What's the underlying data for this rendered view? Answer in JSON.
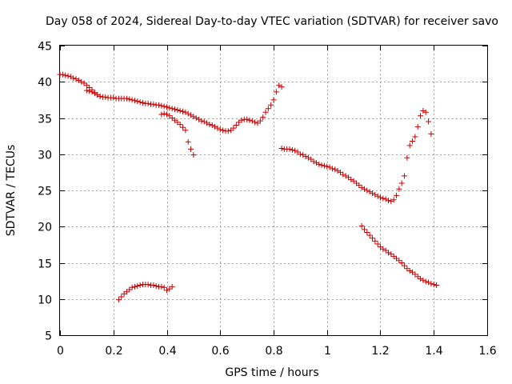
{
  "chart_data": {
    "type": "scatter",
    "title": "Day 058 of 2024, Sidereal Day-to-day VTEC variation (SDTVAR) for receiver savo",
    "xlabel": "GPS time / hours",
    "ylabel": "SDTVAR / TECUs",
    "xlim": [
      0,
      1.6
    ],
    "ylim": [
      5,
      45
    ],
    "xticks": [
      "0",
      "0.2",
      "0.4",
      "0.6",
      "0.8",
      "1",
      "1.2",
      "1.4",
      "1.6"
    ],
    "yticks": [
      "5",
      "10",
      "15",
      "20",
      "25",
      "30",
      "35",
      "40",
      "45"
    ],
    "grid": true,
    "marker": "+",
    "color": "#cc0000",
    "series": [
      {
        "name": "arc1",
        "points": [
          [
            0.0,
            41.0
          ],
          [
            0.01,
            41.0
          ],
          [
            0.02,
            40.9
          ],
          [
            0.03,
            40.8
          ],
          [
            0.04,
            40.7
          ],
          [
            0.05,
            40.5
          ],
          [
            0.06,
            40.4
          ],
          [
            0.07,
            40.2
          ],
          [
            0.08,
            40.0
          ],
          [
            0.09,
            39.8
          ],
          [
            0.1,
            39.5
          ],
          [
            0.11,
            39.2
          ],
          [
            0.12,
            38.9
          ],
          [
            0.13,
            38.5
          ],
          [
            0.14,
            38.2
          ],
          [
            0.15,
            38.0
          ],
          [
            0.16,
            37.9
          ],
          [
            0.17,
            37.9
          ],
          [
            0.18,
            37.8
          ],
          [
            0.19,
            37.8
          ],
          [
            0.2,
            37.8
          ],
          [
            0.21,
            37.7
          ],
          [
            0.22,
            37.7
          ],
          [
            0.23,
            37.7
          ],
          [
            0.24,
            37.7
          ],
          [
            0.25,
            37.7
          ],
          [
            0.26,
            37.6
          ],
          [
            0.27,
            37.5
          ],
          [
            0.28,
            37.4
          ],
          [
            0.29,
            37.3
          ],
          [
            0.3,
            37.2
          ],
          [
            0.31,
            37.1
          ],
          [
            0.32,
            37.0
          ],
          [
            0.33,
            37.0
          ],
          [
            0.34,
            36.9
          ],
          [
            0.35,
            36.9
          ],
          [
            0.36,
            36.8
          ],
          [
            0.37,
            36.8
          ],
          [
            0.38,
            36.7
          ],
          [
            0.39,
            36.6
          ],
          [
            0.4,
            36.5
          ],
          [
            0.41,
            36.4
          ],
          [
            0.42,
            36.3
          ],
          [
            0.43,
            36.2
          ],
          [
            0.44,
            36.1
          ],
          [
            0.45,
            36.0
          ],
          [
            0.46,
            35.9
          ],
          [
            0.47,
            35.8
          ],
          [
            0.48,
            35.6
          ],
          [
            0.49,
            35.4
          ],
          [
            0.5,
            35.2
          ],
          [
            0.51,
            35.0
          ],
          [
            0.52,
            34.8
          ],
          [
            0.53,
            34.6
          ],
          [
            0.54,
            34.5
          ],
          [
            0.55,
            34.3
          ],
          [
            0.56,
            34.1
          ],
          [
            0.57,
            34.0
          ],
          [
            0.58,
            33.8
          ],
          [
            0.59,
            33.6
          ],
          [
            0.6,
            33.4
          ],
          [
            0.61,
            33.3
          ],
          [
            0.62,
            33.2
          ],
          [
            0.63,
            33.2
          ],
          [
            0.64,
            33.3
          ],
          [
            0.65,
            33.6
          ],
          [
            0.66,
            34.0
          ],
          [
            0.67,
            34.4
          ],
          [
            0.68,
            34.7
          ],
          [
            0.69,
            34.8
          ],
          [
            0.7,
            34.8
          ],
          [
            0.71,
            34.7
          ],
          [
            0.72,
            34.6
          ],
          [
            0.73,
            34.4
          ],
          [
            0.74,
            34.3
          ],
          [
            0.75,
            34.6
          ],
          [
            0.76,
            35.1
          ],
          [
            0.77,
            35.8
          ],
          [
            0.78,
            36.3
          ],
          [
            0.79,
            36.8
          ],
          [
            0.8,
            37.5
          ],
          [
            0.81,
            38.6
          ],
          [
            0.82,
            39.5
          ],
          [
            0.83,
            39.3
          ]
        ]
      },
      {
        "name": "arc2",
        "points": [
          [
            0.1,
            38.8
          ],
          [
            0.11,
            38.7
          ],
          [
            0.12,
            38.6
          ],
          [
            0.13,
            38.4
          ],
          [
            0.14,
            38.2
          ],
          [
            0.15,
            38.0
          ]
        ]
      },
      {
        "name": "arc3",
        "points": [
          [
            0.38,
            35.5
          ],
          [
            0.39,
            35.6
          ],
          [
            0.4,
            35.5
          ],
          [
            0.41,
            35.3
          ],
          [
            0.42,
            35.0
          ],
          [
            0.43,
            34.7
          ],
          [
            0.44,
            34.4
          ],
          [
            0.45,
            34.1
          ],
          [
            0.46,
            33.7
          ],
          [
            0.47,
            33.3
          ],
          [
            0.48,
            31.7
          ],
          [
            0.49,
            30.7
          ],
          [
            0.5,
            29.9
          ]
        ]
      },
      {
        "name": "arc4",
        "points": [
          [
            0.22,
            9.9
          ],
          [
            0.23,
            10.3
          ],
          [
            0.24,
            10.7
          ],
          [
            0.25,
            11.0
          ],
          [
            0.26,
            11.3
          ],
          [
            0.27,
            11.6
          ],
          [
            0.28,
            11.7
          ],
          [
            0.29,
            11.8
          ],
          [
            0.3,
            11.9
          ],
          [
            0.31,
            12.0
          ],
          [
            0.32,
            12.0
          ],
          [
            0.33,
            12.0
          ],
          [
            0.34,
            11.9
          ],
          [
            0.35,
            11.9
          ],
          [
            0.36,
            11.8
          ],
          [
            0.37,
            11.7
          ],
          [
            0.38,
            11.7
          ],
          [
            0.39,
            11.6
          ],
          [
            0.4,
            11.2
          ],
          [
            0.41,
            11.4
          ],
          [
            0.42,
            11.7
          ]
        ]
      },
      {
        "name": "arc5",
        "points": [
          [
            0.83,
            30.8
          ],
          [
            0.84,
            30.7
          ],
          [
            0.85,
            30.7
          ],
          [
            0.86,
            30.7
          ],
          [
            0.87,
            30.6
          ],
          [
            0.88,
            30.5
          ],
          [
            0.89,
            30.3
          ],
          [
            0.9,
            30.0
          ],
          [
            0.91,
            29.9
          ],
          [
            0.92,
            29.7
          ],
          [
            0.93,
            29.5
          ],
          [
            0.94,
            29.3
          ],
          [
            0.95,
            29.0
          ],
          [
            0.96,
            28.8
          ],
          [
            0.97,
            28.6
          ],
          [
            0.98,
            28.5
          ],
          [
            0.99,
            28.4
          ],
          [
            1.0,
            28.3
          ],
          [
            1.01,
            28.2
          ],
          [
            1.02,
            28.0
          ],
          [
            1.03,
            27.9
          ],
          [
            1.04,
            27.7
          ],
          [
            1.05,
            27.5
          ],
          [
            1.06,
            27.2
          ],
          [
            1.07,
            27.0
          ],
          [
            1.08,
            26.8
          ],
          [
            1.09,
            26.5
          ],
          [
            1.1,
            26.3
          ],
          [
            1.11,
            26.0
          ],
          [
            1.12,
            25.7
          ],
          [
            1.13,
            25.4
          ],
          [
            1.14,
            25.2
          ],
          [
            1.15,
            25.0
          ],
          [
            1.16,
            24.8
          ],
          [
            1.17,
            24.6
          ],
          [
            1.18,
            24.4
          ],
          [
            1.19,
            24.2
          ],
          [
            1.2,
            24.0
          ],
          [
            1.21,
            23.9
          ],
          [
            1.22,
            23.8
          ],
          [
            1.23,
            23.6
          ],
          [
            1.24,
            23.5
          ],
          [
            1.25,
            23.7
          ],
          [
            1.26,
            24.3
          ],
          [
            1.27,
            25.2
          ],
          [
            1.28,
            26.0
          ],
          [
            1.29,
            27.0
          ],
          [
            1.3,
            29.5
          ],
          [
            1.31,
            31.2
          ],
          [
            1.32,
            31.8
          ],
          [
            1.33,
            32.4
          ],
          [
            1.34,
            33.8
          ],
          [
            1.35,
            35.3
          ],
          [
            1.36,
            36.0
          ],
          [
            1.37,
            35.8
          ],
          [
            1.38,
            34.5
          ],
          [
            1.39,
            32.8
          ]
        ]
      },
      {
        "name": "arc6",
        "points": [
          [
            1.13,
            20.1
          ],
          [
            1.14,
            19.6
          ],
          [
            1.15,
            19.2
          ],
          [
            1.16,
            18.8
          ],
          [
            1.17,
            18.4
          ],
          [
            1.18,
            18.0
          ],
          [
            1.19,
            17.6
          ],
          [
            1.2,
            17.2
          ],
          [
            1.21,
            16.9
          ],
          [
            1.22,
            16.7
          ],
          [
            1.23,
            16.4
          ],
          [
            1.24,
            16.2
          ],
          [
            1.25,
            15.9
          ],
          [
            1.26,
            15.6
          ],
          [
            1.27,
            15.3
          ],
          [
            1.28,
            15.0
          ],
          [
            1.29,
            14.6
          ],
          [
            1.3,
            14.2
          ],
          [
            1.31,
            13.9
          ],
          [
            1.32,
            13.7
          ],
          [
            1.33,
            13.4
          ],
          [
            1.34,
            13.1
          ],
          [
            1.35,
            12.8
          ],
          [
            1.36,
            12.6
          ],
          [
            1.37,
            12.4
          ],
          [
            1.38,
            12.3
          ],
          [
            1.39,
            12.1
          ],
          [
            1.4,
            12.0
          ],
          [
            1.41,
            11.9
          ]
        ]
      }
    ]
  }
}
